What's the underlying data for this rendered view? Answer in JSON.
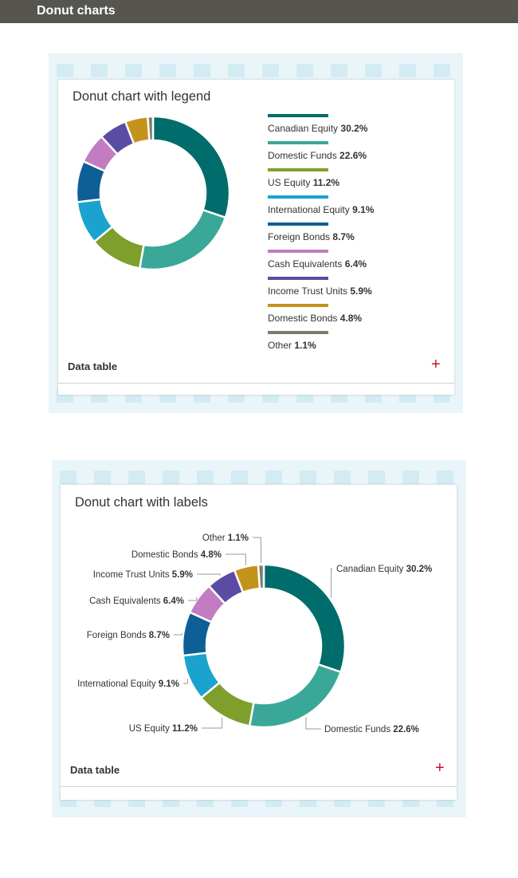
{
  "header": {
    "title": "Donut charts"
  },
  "colors": {
    "Canadian Equity": "#006c6b",
    "Domestic Funds": "#3aa898",
    "US Equity": "#7f9f2c",
    "International Equity": "#1aa3cf",
    "Foreign Bonds": "#0e5f96",
    "Cash Equivalents": "#c27cc1",
    "Income Trust Units": "#5a4ca3",
    "Domestic Bonds": "#c4931c",
    "Other": "#7b7d6b"
  },
  "chart_data": [
    {
      "type": "pie",
      "variant": "donut",
      "title": "Donut chart with legend",
      "legend_placement": "right",
      "categories": [
        "Canadian Equity",
        "Domestic Funds",
        "US Equity",
        "International Equity",
        "Foreign Bonds",
        "Cash Equivalents",
        "Income Trust Units",
        "Domestic Bonds",
        "Other"
      ],
      "values": [
        30.2,
        22.6,
        11.2,
        9.1,
        8.7,
        6.4,
        5.9,
        4.8,
        1.1
      ],
      "value_labels": [
        "30.2%",
        "22.6%",
        "11.2%",
        "9.1%",
        "8.7%",
        "6.4%",
        "5.9%",
        "4.8%",
        "1.1%"
      ],
      "footer_label": "Data table",
      "footer_icon": "plus-icon"
    },
    {
      "type": "pie",
      "variant": "donut",
      "title": "Donut chart with labels",
      "legend_placement": "none",
      "categories": [
        "Canadian Equity",
        "Domestic Funds",
        "US Equity",
        "International Equity",
        "Foreign Bonds",
        "Cash Equivalents",
        "Income Trust Units",
        "Domestic Bonds",
        "Other"
      ],
      "values": [
        30.2,
        22.6,
        11.2,
        9.1,
        8.7,
        6.4,
        5.9,
        4.8,
        1.1
      ],
      "value_labels": [
        "30.2%",
        "22.6%",
        "11.2%",
        "9.1%",
        "8.7%",
        "6.4%",
        "5.9%",
        "4.8%",
        "1.1%"
      ],
      "footer_label": "Data table",
      "footer_icon": "plus-icon"
    }
  ]
}
